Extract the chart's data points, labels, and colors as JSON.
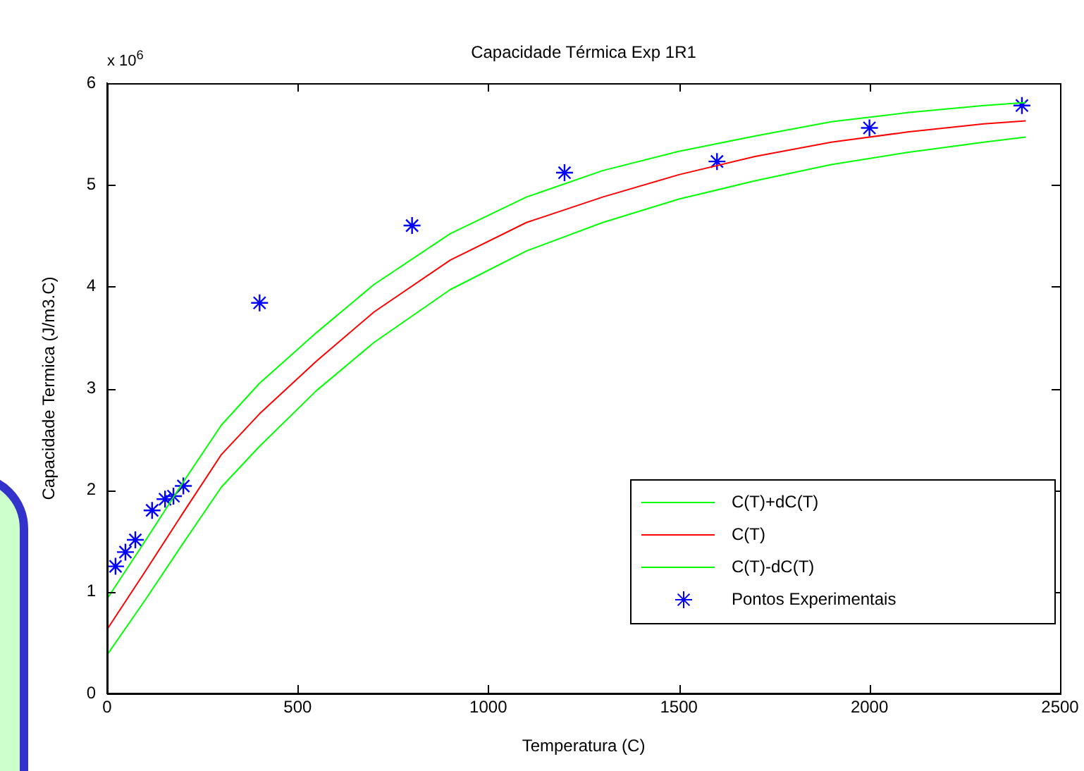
{
  "chart_data": {
    "type": "line",
    "title": "Capacidade Térmica Exp 1R1",
    "xlabel": "Temperatura (C)",
    "ylabel": "Capacidade Termica (J/m3.C)",
    "annotations": [
      "x 10$^{6}$"
    ],
    "xlim": [
      0,
      2500
    ],
    "xticks": [
      0,
      500,
      1000,
      1500,
      2000,
      2500
    ],
    "ylim": [
      0,
      6
    ],
    "yticks": [
      0,
      1,
      2,
      3,
      4,
      5,
      6
    ],
    "grid": false,
    "legend": "bottom right",
    "series": [
      {
        "name": "C(T)+dC(T)",
        "color": "#00ff00",
        "type": "line",
        "marker": "none",
        "x": [
          0,
          100,
          200,
          300,
          400,
          550,
          700,
          900,
          1100,
          1300,
          1500,
          1700,
          1900,
          2100,
          2300,
          2410
        ],
        "values": [
          0.93,
          1.5,
          2.08,
          2.64,
          3.05,
          3.55,
          4.02,
          4.52,
          4.88,
          5.14,
          5.33,
          5.48,
          5.62,
          5.71,
          5.78,
          5.81
        ]
      },
      {
        "name": "C(T)",
        "color": "#ff0000",
        "type": "line",
        "marker": "none",
        "x": [
          0,
          100,
          200,
          300,
          400,
          550,
          700,
          900,
          1100,
          1300,
          1500,
          1700,
          1900,
          2100,
          2300,
          2410
        ],
        "values": [
          0.63,
          1.2,
          1.78,
          2.35,
          2.75,
          3.27,
          3.75,
          4.26,
          4.63,
          4.88,
          5.1,
          5.28,
          5.42,
          5.52,
          5.6,
          5.63
        ]
      },
      {
        "name": "C(T)-dC(T)",
        "color": "#00ff00",
        "type": "line",
        "marker": "none",
        "x": [
          0,
          100,
          200,
          300,
          400,
          550,
          700,
          900,
          1100,
          1300,
          1500,
          1700,
          1900,
          2100,
          2300,
          2410
        ],
        "values": [
          0.38,
          0.92,
          1.48,
          2.03,
          2.43,
          2.98,
          3.45,
          3.97,
          4.35,
          4.63,
          4.86,
          5.04,
          5.2,
          5.32,
          5.42,
          5.47
        ]
      },
      {
        "name": "Pontos Experimentais",
        "color": "#0000ff",
        "type": "scatter",
        "marker": "cross",
        "x": [
          22,
          48,
          74,
          118,
          152,
          174,
          200,
          400,
          800,
          1200,
          1600,
          2000,
          2400
        ],
        "values": [
          1.25,
          1.39,
          1.51,
          1.8,
          1.91,
          1.94,
          2.04,
          3.84,
          4.6,
          5.12,
          5.23,
          5.56,
          5.78
        ]
      }
    ]
  }
}
